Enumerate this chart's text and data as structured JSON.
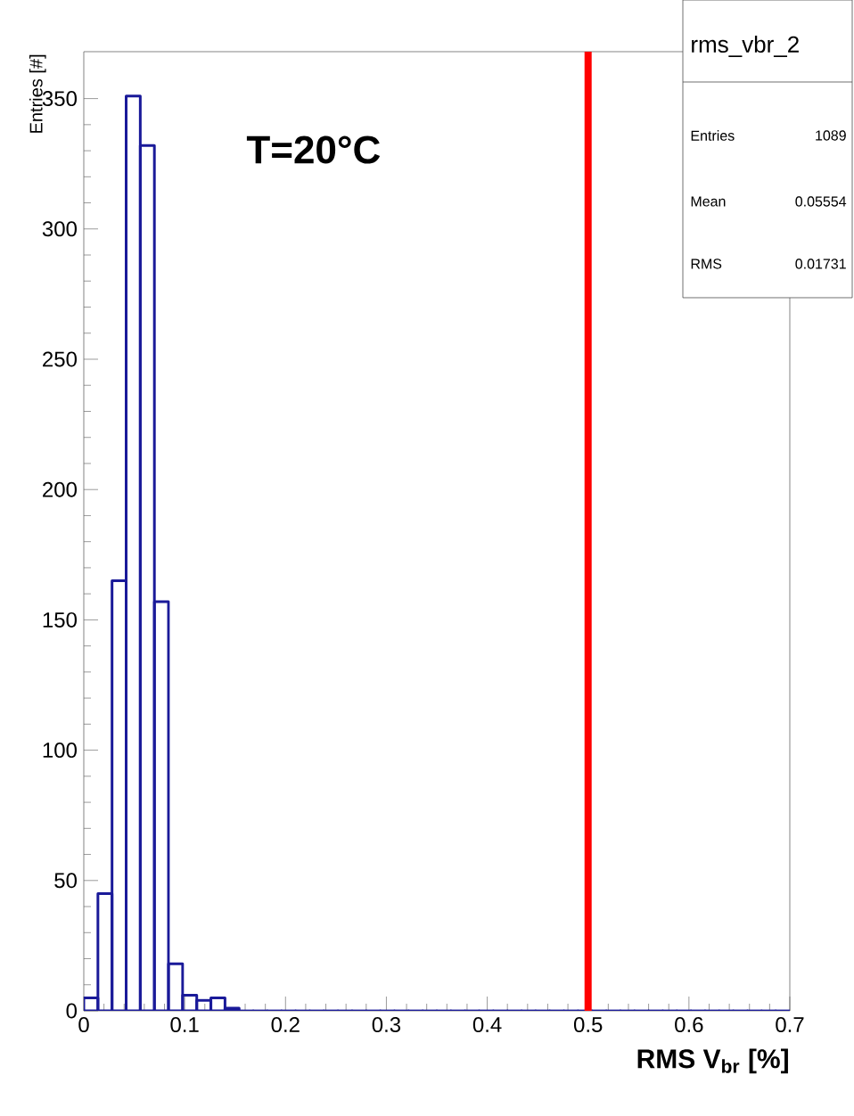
{
  "chart_data": {
    "type": "histogram",
    "xlabel": "RMS V$_{br}$ [%]",
    "ylabel": "Entries [#]",
    "bins": [
      0,
      0.014,
      0.028,
      0.042,
      0.056,
      0.07,
      0.084,
      0.098,
      0.112,
      0.126,
      0.14,
      0.154,
      0.168,
      0.182,
      0.196,
      0.21,
      0.224,
      0.238,
      0.252,
      0.266,
      0.28,
      0.294,
      0.308,
      0.322,
      0.336,
      0.35,
      0.364,
      0.378,
      0.392,
      0.406,
      0.42,
      0.434,
      0.448,
      0.462,
      0.476,
      0.49,
      0.504,
      0.518,
      0.532,
      0.546,
      0.56,
      0.574,
      0.588,
      0.602,
      0.616,
      0.63,
      0.644,
      0.658,
      0.672,
      0.686,
      0.7
    ],
    "values": [
      5,
      45,
      165,
      351,
      332,
      157,
      18,
      6,
      4,
      5,
      1,
      0,
      0,
      0,
      0,
      0,
      0,
      0,
      0,
      0,
      0,
      0,
      0,
      0,
      0,
      0,
      0,
      0,
      0,
      0,
      0,
      0,
      0,
      0,
      0,
      0,
      0,
      0,
      0,
      0,
      0,
      0,
      0,
      0,
      0,
      0,
      0,
      0,
      0,
      0
    ],
    "color": "#1a1a99",
    "xlim": [
      0,
      0.7
    ],
    "ylim": [
      0,
      368
    ],
    "xticks": [
      0,
      0.1,
      0.2,
      0.3,
      0.4,
      0.5,
      0.6,
      0.7
    ],
    "yticks": [
      0,
      50,
      100,
      150,
      200,
      250,
      300,
      350
    ],
    "ref_lines": [
      {
        "axis": "x",
        "value": 0.5,
        "color": "#ff0000"
      }
    ],
    "annotations": [
      "T=20°C",
      "rms_vbr_2",
      "Entries",
      "1089",
      "Mean",
      "0.05554",
      "RMS",
      "0.01731"
    ],
    "grid": false
  }
}
